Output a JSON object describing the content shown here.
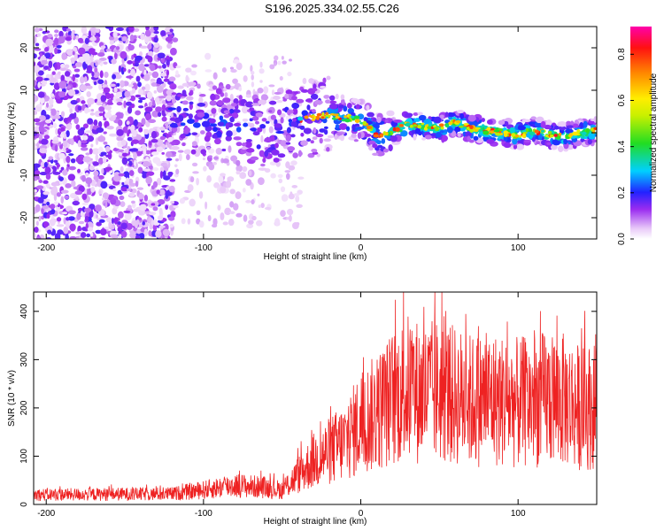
{
  "title": "S196.2025.334.02.55.C26",
  "chart_data": [
    {
      "type": "heatmap",
      "name": "spectrogram",
      "xlabel": "Height of straight line (km)",
      "ylabel": "Frequency (Hz)",
      "xlim": [
        -208,
        150
      ],
      "ylim": [
        -25,
        25
      ],
      "xticks": [
        -200,
        -100,
        0,
        100
      ],
      "yticks": [
        -20,
        -10,
        0,
        10,
        20
      ],
      "colorbar": {
        "label": "Normalized spectral amplitude",
        "ticks": [
          0.0,
          0.2,
          0.4,
          0.6,
          0.8
        ],
        "tick_labels": [
          "0.0",
          "0.2",
          "0.4",
          "0.6",
          "0.8"
        ],
        "range": [
          0,
          0.92
        ]
      },
      "ridge": {
        "x": [
          -120,
          -100,
          -80,
          -60,
          -40,
          -20,
          0,
          10,
          20,
          30,
          40,
          50,
          60,
          70,
          80,
          90,
          100,
          110,
          120,
          130,
          140,
          150
        ],
        "y": [
          3.5,
          3,
          2,
          0,
          3,
          4,
          3,
          -0.5,
          0,
          2,
          1.5,
          1,
          2.5,
          1,
          0.5,
          0,
          -0.5,
          0.5,
          -0.5,
          -1,
          0,
          0.5
        ]
      }
    },
    {
      "type": "line",
      "name": "snr",
      "xlabel": "Height of straight line (km)",
      "ylabel": "SNR (10 * v/v)",
      "xlim": [
        -208,
        150
      ],
      "ylim": [
        0,
        440
      ],
      "xticks": [
        -200,
        -100,
        0,
        100
      ],
      "yticks": [
        0,
        100,
        200,
        300,
        400
      ],
      "color": "#ee2222",
      "envelope": {
        "x": [
          -208,
          -120,
          -100,
          -80,
          -60,
          -50,
          -40,
          -30,
          -20,
          -10,
          0,
          10,
          20,
          30,
          40,
          50,
          60,
          70,
          80,
          90,
          100,
          110,
          120,
          130,
          140,
          150
        ],
        "mean": [
          20,
          22,
          30,
          40,
          35,
          30,
          60,
          90,
          110,
          130,
          170,
          190,
          220,
          240,
          230,
          235,
          225,
          215,
          220,
          215,
          210,
          215,
          220,
          215,
          200,
          205
        ]
      }
    }
  ]
}
